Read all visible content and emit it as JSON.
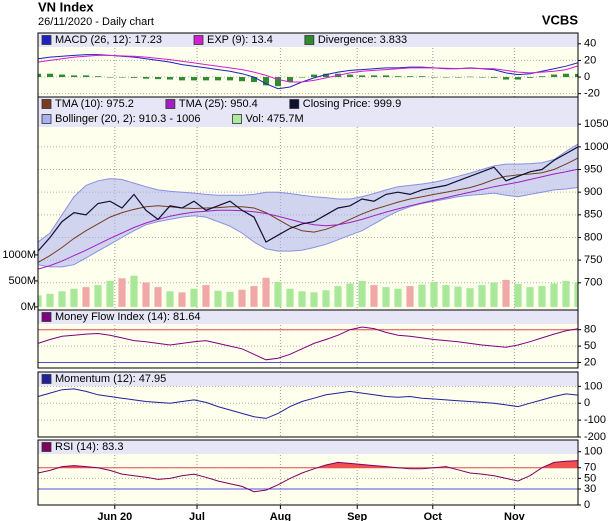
{
  "header": {
    "title": "VN Index",
    "subtitle": "26/11/2020 - Daily chart",
    "source": "VCBS"
  },
  "chart_data": [
    {
      "type": "line",
      "xlim": [
        0,
        45
      ],
      "ylim": [
        -24,
        53
      ],
      "yticks": [
        40,
        20,
        0,
        -20
      ],
      "grid": true,
      "series": [
        {
          "name": "MACD (26, 12): 17.23",
          "color": "#2020c0",
          "style": "line",
          "values": [
            22,
            24,
            25,
            26,
            27,
            27,
            26,
            25,
            24,
            22,
            20,
            18,
            15,
            13,
            11,
            9,
            7,
            4,
            0,
            -8,
            -14,
            -12,
            -6,
            -1,
            3,
            6,
            8,
            9,
            10,
            11,
            11,
            12,
            12,
            11,
            10,
            10,
            11,
            10,
            9,
            5,
            3,
            4,
            7,
            10,
            13,
            17.23
          ]
        },
        {
          "name": "EXP (9): 13.4",
          "color": "#d020d0",
          "style": "line",
          "values": [
            18,
            20,
            22,
            24,
            25,
            26,
            26,
            25.5,
            25,
            24,
            22.5,
            21,
            19,
            17,
            15,
            13,
            11,
            9,
            6,
            2,
            -3,
            -6,
            -6,
            -4,
            -1,
            2,
            5,
            7,
            8,
            9,
            10,
            11,
            11,
            11,
            10.5,
            10.3,
            10.5,
            10.3,
            10,
            8,
            6,
            5,
            6,
            7,
            9,
            13.4
          ]
        },
        {
          "name": "Divergence: 3.833",
          "color": "#2e8b2e",
          "style": "bar",
          "values": [
            4,
            4,
            3,
            2,
            2,
            1,
            0,
            -0.5,
            -1,
            -2,
            -2.5,
            -3,
            -4,
            -4,
            -4,
            -4,
            -4,
            -5,
            -6,
            -10,
            -11,
            -6,
            0,
            3,
            4,
            4,
            3,
            2,
            2,
            2,
            1,
            1,
            1,
            0,
            -0.5,
            -0.3,
            0.5,
            -0.3,
            -1,
            -3,
            -3,
            -1,
            1,
            3,
            4,
            3.833
          ]
        }
      ]
    },
    {
      "type": "line",
      "xlim": [
        0,
        45
      ],
      "ylim": [
        640,
        1110
      ],
      "yticks": [
        700,
        750,
        800,
        850,
        900,
        950,
        1000,
        1050
      ],
      "y2lim": [
        -60,
        4040
      ],
      "y2ticks": [
        {
          "value": 0,
          "label": "0M"
        },
        {
          "value": 500,
          "label": "500M"
        },
        {
          "value": 1000,
          "label": "1000M"
        }
      ],
      "grid": true,
      "series": [
        {
          "name": "TMA (10): 975.2",
          "color": "#7a3b1e",
          "style": "line",
          "values": [
            745,
            760,
            778,
            798,
            815,
            830,
            845,
            855,
            862,
            868,
            870,
            868,
            865,
            864,
            865,
            866,
            868,
            868,
            865,
            855,
            840,
            825,
            815,
            812,
            818,
            828,
            840,
            852,
            862,
            870,
            878,
            885,
            890,
            895,
            900,
            905,
            910,
            918,
            928,
            935,
            938,
            940,
            943,
            950,
            962,
            975.2
          ]
        },
        {
          "name": "TMA (25): 950.4",
          "color": "#a020c0",
          "style": "line",
          "values": [
            730,
            738,
            748,
            760,
            772,
            785,
            798,
            810,
            822,
            832,
            840,
            847,
            852,
            856,
            858,
            860,
            860,
            859,
            857,
            853,
            847,
            840,
            833,
            828,
            826,
            828,
            833,
            840,
            848,
            856,
            863,
            870,
            876,
            882,
            888,
            894,
            900,
            906,
            912,
            917,
            922,
            928,
            934,
            940,
            945,
            950.4
          ]
        },
        {
          "name": "Closing Price: 999.9",
          "color": "#101030",
          "style": "price",
          "values": [
            770,
            800,
            835,
            855,
            850,
            875,
            880,
            865,
            895,
            860,
            840,
            870,
            865,
            880,
            860,
            870,
            880,
            860,
            845,
            790,
            805,
            820,
            830,
            835,
            850,
            865,
            870,
            885,
            880,
            895,
            900,
            895,
            905,
            910,
            915,
            925,
            935,
            945,
            955,
            925,
            935,
            945,
            950,
            970,
            985,
            999.9
          ]
        },
        {
          "name": "Bollinger (20, 2): 910.3 - 1006",
          "color": "#aab0ee",
          "style": "band",
          "upper": [
            790,
            810,
            850,
            890,
            915,
            925,
            930,
            928,
            920,
            912,
            905,
            902,
            900,
            898,
            895,
            893,
            893,
            893,
            895,
            900,
            900,
            897,
            893,
            890,
            888,
            885,
            885,
            890,
            897,
            905,
            912,
            915,
            918,
            922,
            928,
            935,
            942,
            950,
            958,
            962,
            962,
            963,
            965,
            972,
            990,
            1006
          ],
          "lower": [
            740,
            735,
            735,
            740,
            755,
            770,
            785,
            800,
            815,
            828,
            835,
            840,
            845,
            848,
            845,
            835,
            825,
            810,
            790,
            775,
            770,
            770,
            772,
            778,
            785,
            795,
            805,
            815,
            830,
            845,
            858,
            868,
            875,
            880,
            885,
            890,
            893,
            895,
            898,
            893,
            890,
            895,
            900,
            905,
            907,
            910.3
          ]
        },
        {
          "name": "Vol: 475.7M",
          "color": "#b0e8a0",
          "up_color": "#a8e898",
          "down_color": "#f0a8a8",
          "style": "volume",
          "axis": "y2",
          "values": [
            220,
            250,
            300,
            350,
            380,
            420,
            500,
            550,
            600,
            470,
            380,
            300,
            280,
            350,
            420,
            310,
            290,
            330,
            400,
            560,
            480,
            350,
            300,
            280,
            320,
            400,
            450,
            500,
            420,
            380,
            350,
            400,
            430,
            480,
            420,
            390,
            360,
            420,
            470,
            520,
            440,
            380,
            400,
            450,
            500,
            475.7
          ]
        }
      ]
    },
    {
      "type": "line",
      "xlim": [
        0,
        45
      ],
      "ylim": [
        10,
        116
      ],
      "yticks": [
        80,
        50,
        20
      ],
      "grid": true,
      "reference_lines": [
        {
          "value": 80,
          "color": "#e05050"
        },
        {
          "value": 20,
          "color": "#5050e0"
        }
      ],
      "series": [
        {
          "name": "Money Flow Index (14): 81.64",
          "color": "#800080",
          "style": "line",
          "values": [
            55,
            62,
            68,
            70,
            72,
            73,
            70,
            65,
            60,
            58,
            55,
            52,
            55,
            58,
            60,
            55,
            50,
            45,
            35,
            25,
            28,
            35,
            45,
            55,
            62,
            70,
            80,
            85,
            82,
            75,
            70,
            68,
            65,
            62,
            60,
            58,
            55,
            52,
            50,
            48,
            52,
            58,
            65,
            72,
            78,
            81.64
          ]
        }
      ]
    },
    {
      "type": "line",
      "xlim": [
        0,
        45
      ],
      "ylim": [
        -200,
        185
      ],
      "yticks": [
        100,
        0,
        -100,
        -200
      ],
      "grid": true,
      "series": [
        {
          "name": "Momentum (12): 47.95",
          "color": "#2020a0",
          "style": "line",
          "values": [
            40,
            60,
            80,
            85,
            70,
            50,
            40,
            30,
            20,
            10,
            5,
            0,
            10,
            20,
            5,
            -20,
            -40,
            -60,
            -80,
            -90,
            -60,
            -20,
            10,
            30,
            50,
            60,
            70,
            60,
            50,
            40,
            35,
            40,
            30,
            25,
            20,
            15,
            10,
            5,
            0,
            -10,
            -20,
            0,
            20,
            40,
            55,
            47.95
          ]
        }
      ]
    },
    {
      "type": "line",
      "xlim": [
        0,
        45
      ],
      "ylim": [
        0,
        122
      ],
      "yticks": [
        100,
        70,
        50,
        30,
        0
      ],
      "grid": true,
      "xticks": [
        {
          "value": 6.4,
          "label": "Jun 20"
        },
        {
          "value": 13.25,
          "label": "Jul"
        },
        {
          "value": 20.2,
          "label": "Aug"
        },
        {
          "value": 26.6,
          "label": "Sep"
        },
        {
          "value": 32.9,
          "label": "Oct"
        },
        {
          "value": 39.7,
          "label": "Nov"
        }
      ],
      "reference_lines": [
        {
          "value": 70,
          "color": "#e05050"
        },
        {
          "value": 30,
          "color": "#5050e0"
        }
      ],
      "series": [
        {
          "name": "RSI (14): 83.3",
          "color": "#800060",
          "style": "line",
          "fill_above": 70,
          "fill_color": "#f05050",
          "values": [
            60,
            65,
            72,
            74,
            72,
            70,
            65,
            58,
            55,
            52,
            48,
            50,
            55,
            58,
            52,
            45,
            40,
            35,
            25,
            28,
            38,
            50,
            60,
            68,
            75,
            80,
            78,
            76,
            74,
            72,
            70,
            68,
            68,
            70,
            72,
            66,
            60,
            58,
            55,
            50,
            45,
            55,
            70,
            80,
            82,
            83.3
          ]
        }
      ]
    }
  ]
}
